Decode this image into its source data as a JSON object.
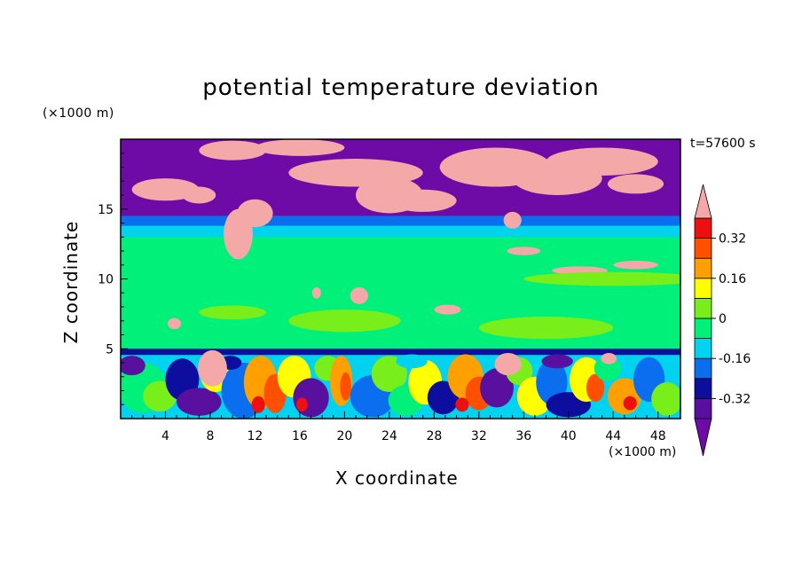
{
  "chart_data": {
    "type": "heatmap",
    "title": "potential temperature deviation",
    "xlabel": "X coordinate",
    "ylabel": "Z coordinate",
    "x_unit": "(×1000 m)",
    "y_unit": "(×1000 m)",
    "time_label": "t=57600 s",
    "xlim": [
      0,
      50
    ],
    "ylim": [
      0,
      20
    ],
    "x_ticks": [
      4,
      8,
      12,
      16,
      20,
      24,
      28,
      32,
      36,
      40,
      44,
      48
    ],
    "y_ticks": [
      5,
      10,
      15
    ],
    "colorbar": {
      "levels": [
        -0.4,
        -0.32,
        -0.24,
        -0.16,
        -0.08,
        0,
        0.08,
        0.16,
        0.24,
        0.32,
        0.4
      ],
      "labels": [
        "0.32",
        "0.16",
        "0",
        "-0.16",
        "-0.32"
      ],
      "label_values": [
        0.32,
        0.16,
        0,
        -0.16,
        -0.32
      ],
      "colors_low_to_high": [
        "#5a109e",
        "#0d0d9e",
        "#0a6eee",
        "#00d2f0",
        "#00f07a",
        "#78ee1a",
        "#ffff00",
        "#ffa000",
        "#ff5000",
        "#ee1010"
      ],
      "over_color": "#f4a8a8",
      "under_color": "#6e0aa6",
      "extend": "both"
    },
    "layers": [
      {
        "z_range": [
          14.5,
          20
        ],
        "value": "below -0.4"
      },
      {
        "z_range": [
          13.8,
          14.5
        ],
        "value": "-0.32 to -0.16"
      },
      {
        "z_range": [
          13.0,
          13.8
        ],
        "value": "-0.16 to -0.08"
      },
      {
        "z_range": [
          5,
          13.0
        ],
        "value": "-0.08 to 0.08"
      },
      {
        "z_range": [
          4.6,
          5
        ],
        "value": "-0.4 to -0.32"
      },
      {
        "z_range": [
          0,
          4.6
        ],
        "value": "-0.4 to 0.4 (turbulent)"
      }
    ]
  }
}
